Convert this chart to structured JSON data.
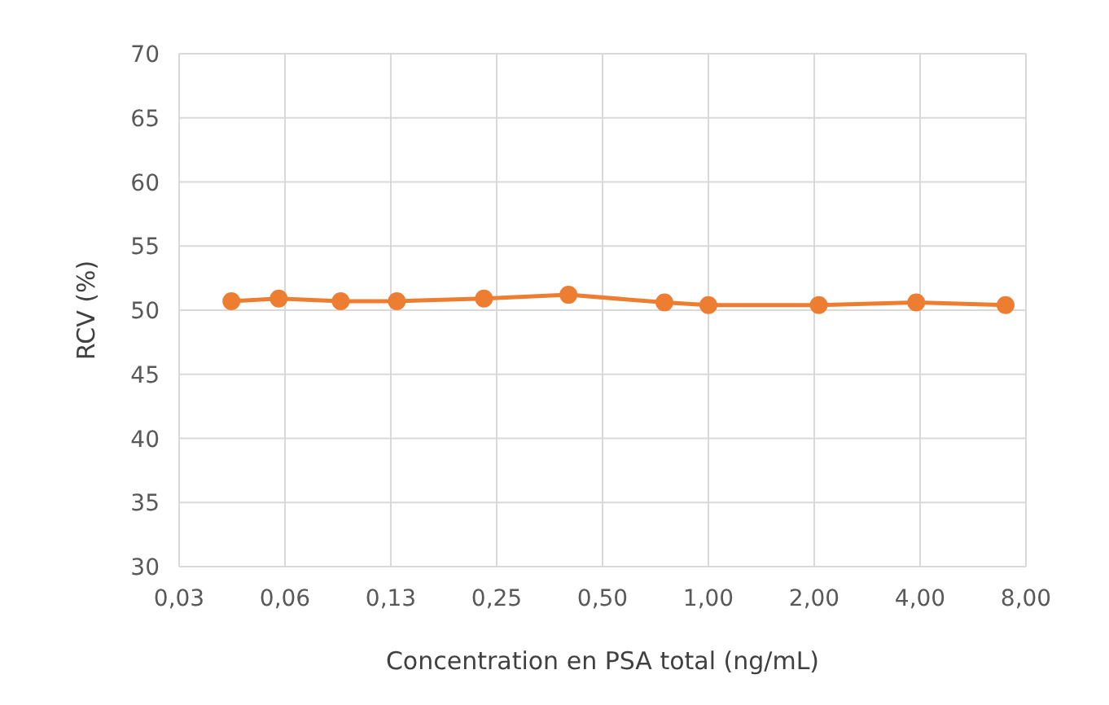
{
  "chart_data": {
    "type": "line",
    "xlabel": "Concentration en PSA total (ng/mL)",
    "ylabel": "RCV (%)",
    "x": [
      0.044,
      0.06,
      0.09,
      0.13,
      0.23,
      0.4,
      0.75,
      1.0,
      2.06,
      3.9,
      7.0
    ],
    "series": [
      {
        "color": "#ed7d31",
        "values": [
          50.7,
          50.9,
          50.7,
          50.7,
          50.9,
          51.2,
          50.6,
          50.4,
          50.4,
          50.6,
          50.4
        ]
      }
    ],
    "log": "x",
    "xlim": [
      0.03125,
      8
    ],
    "xticks": [
      {
        "value": 0.03125,
        "label": "0,03"
      },
      {
        "value": 0.0625,
        "label": "0,06"
      },
      {
        "value": 0.125,
        "label": "0,13"
      },
      {
        "value": 0.25,
        "label": "0,25"
      },
      {
        "value": 0.5,
        "label": "0,50"
      },
      {
        "value": 1,
        "label": "1,00"
      },
      {
        "value": 2,
        "label": "2,00"
      },
      {
        "value": 4,
        "label": "4,00"
      },
      {
        "value": 8,
        "label": "8,00"
      }
    ],
    "ylim": [
      30,
      70
    ],
    "yticks": [
      30,
      35,
      40,
      45,
      50,
      55,
      60,
      65,
      70
    ],
    "grid": true,
    "marker": "circle",
    "line_style": "solid"
  }
}
